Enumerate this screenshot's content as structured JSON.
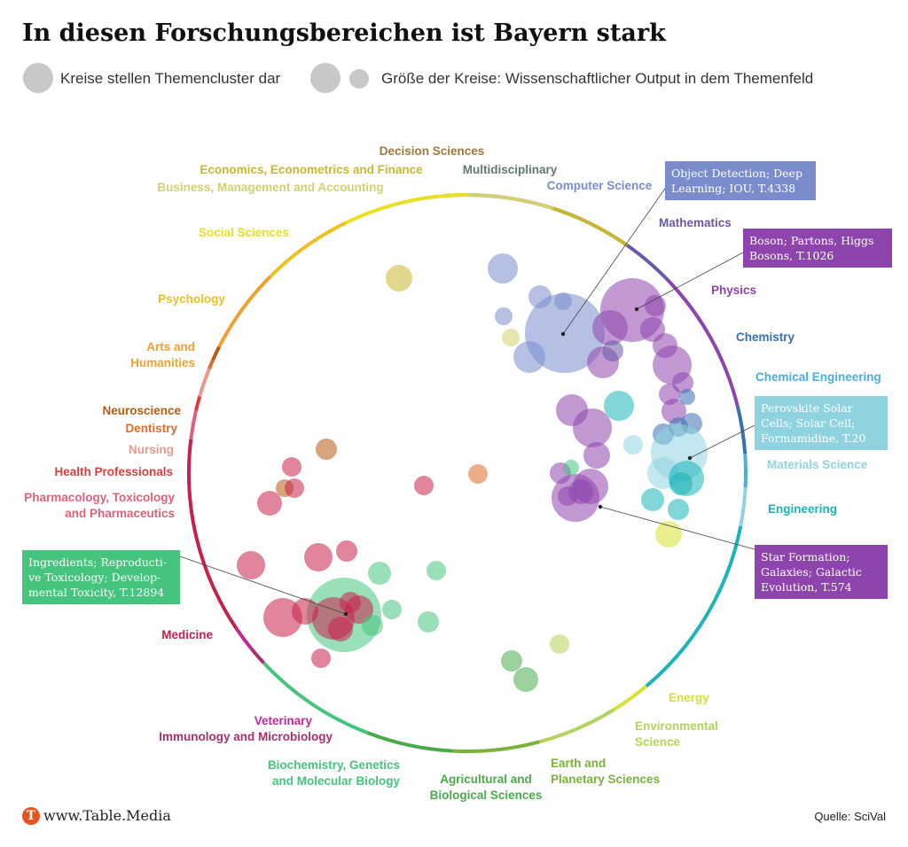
{
  "title": "In diesen Forschungsbereichen ist Bayern stark",
  "legend": {
    "clusters_label": "Kreise stellen Themencluster dar",
    "size_label": "Größe der Kreise: Wissenschaftlicher Output in dem Themenfeld"
  },
  "categories": [
    {
      "id": "decision-sciences",
      "label": "Decision Sciences",
      "color": "#9a7b3c"
    },
    {
      "id": "multidisciplinary",
      "label": "Multidisciplinary",
      "color": "#5f7a6a"
    },
    {
      "id": "computer-science",
      "label": "Computer Science",
      "color": "#7a8ccc"
    },
    {
      "id": "mathematics",
      "label": "Mathematics",
      "color": "#6a5aa6"
    },
    {
      "id": "physics",
      "label": "Physics",
      "color": "#8e44ad"
    },
    {
      "id": "chemistry",
      "label": "Chemistry",
      "color": "#3a6fb0"
    },
    {
      "id": "chemical-engineering",
      "label": "Chemical Engineering",
      "color": "#4aaee0"
    },
    {
      "id": "materials-science",
      "label": "Materials Science",
      "color": "#8fd3e0"
    },
    {
      "id": "engineering",
      "label": "Engineering",
      "color": "#1ab5b8"
    },
    {
      "id": "energy",
      "label": "Energy",
      "color": "#d8e030"
    },
    {
      "id": "environmental-science",
      "label": "Environmental Science",
      "color": "#b4d35a"
    },
    {
      "id": "earth-planetary",
      "label": "Earth and Planetary Sciences",
      "color": "#7ab33a"
    },
    {
      "id": "agricultural",
      "label": "Agricultural and Biological Sciences",
      "color": "#4aaa4a"
    },
    {
      "id": "biochemistry",
      "label": "Biochemistry, Genetics and Molecular Biology",
      "color": "#45c47e"
    },
    {
      "id": "immunology",
      "label": "Immunology and Microbiology",
      "color": "#a8306a"
    },
    {
      "id": "veterinary",
      "label": "Veterinary",
      "color": "#c0289a"
    },
    {
      "id": "medicine",
      "label": "Medicine",
      "color": "#c8204a"
    },
    {
      "id": "pharmacology",
      "label": "Pharmacology, Toxicology and Pharmaceutics",
      "color": "#e0607a"
    },
    {
      "id": "health-professionals",
      "label": "Health Professionals",
      "color": "#e03a3a"
    },
    {
      "id": "nursing",
      "label": "Nursing",
      "color": "#e89a8a"
    },
    {
      "id": "dentistry",
      "label": "Dentistry",
      "color": "#e06a2a"
    },
    {
      "id": "neuroscience",
      "label": "Neuroscience",
      "color": "#b85a10"
    },
    {
      "id": "arts-humanities",
      "label": "Arts and Humanities",
      "color": "#f0a030"
    },
    {
      "id": "psychology",
      "label": "Psychology",
      "color": "#f0c020"
    },
    {
      "id": "social-sciences",
      "label": "Social Sciences",
      "color": "#e8e020"
    },
    {
      "id": "business",
      "label": "Business, Management and Accounting",
      "color": "#d2d070"
    },
    {
      "id": "economics",
      "label": "Economics, Econometrics and Finance",
      "color": "#c8b830"
    }
  ],
  "callouts": [
    {
      "id": "object-detection",
      "text": "Object Detection; Deep Learning; IOU, T.4338",
      "color": "#7a8ccc"
    },
    {
      "id": "boson",
      "text": "Boson; Partons, Higgs Bosons, T.1026",
      "color": "#8e44ad"
    },
    {
      "id": "perovskite",
      "text": "Perovskite Solar Cells; Solar Cell; Formamidine, T.20",
      "color": "#8fd3e0"
    },
    {
      "id": "star-formation",
      "text": "Star Formation; Galaxies; Galactic Evolution, T.574",
      "color": "#8e44ad"
    },
    {
      "id": "ingredients",
      "text": "Ingredients; Reproductive Toxicology; Developmental Toxicity, T.12894",
      "color": "#45c47e"
    }
  ],
  "footer": {
    "logo_letter": "T",
    "url": "www.Table.Media",
    "source": "Quelle: SciVal"
  }
}
